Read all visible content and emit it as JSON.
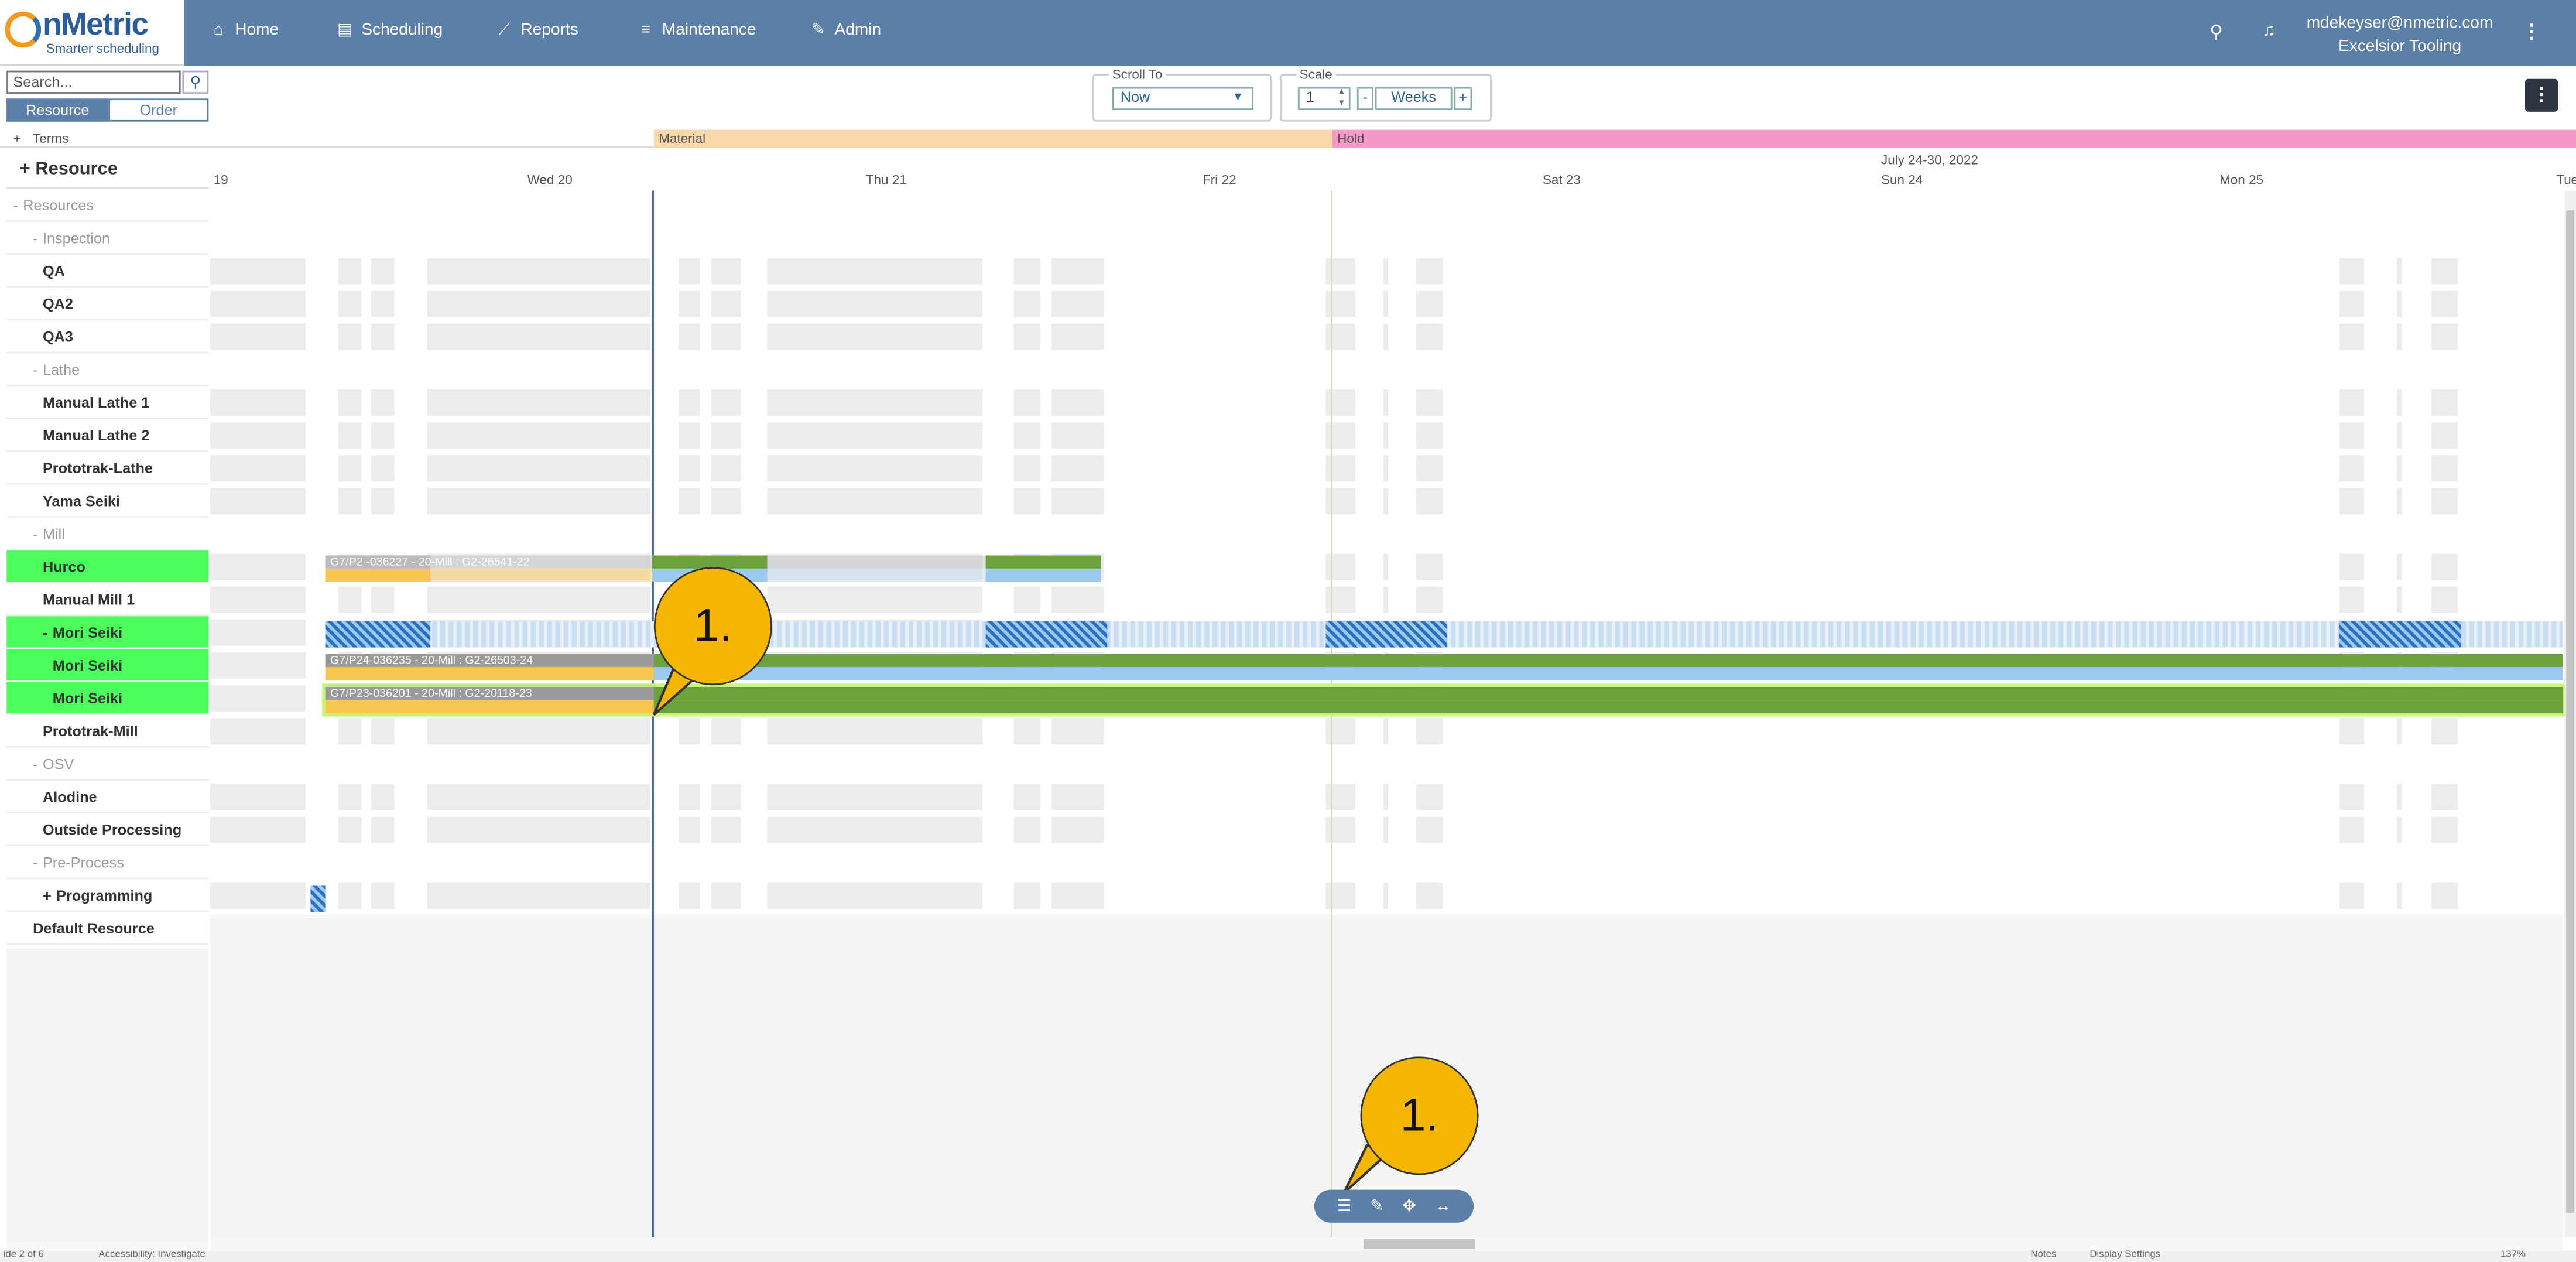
{
  "app": {
    "logo_text": "nMetric",
    "logo_tagline": "Smarter scheduling",
    "nav": [
      {
        "label": "Home",
        "icon": "home-icon"
      },
      {
        "label": "Scheduling",
        "icon": "scheduling-icon"
      },
      {
        "label": "Reports",
        "icon": "chart-icon"
      },
      {
        "label": "Maintenance",
        "icon": "sliders-icon"
      },
      {
        "label": "Admin",
        "icon": "edit-icon"
      }
    ],
    "user_email": "mdekeyser@nmetric.com",
    "company": "Excelsior Tooling"
  },
  "sidebar": {
    "search_placeholder": "Search...",
    "tab_resource": "Resource",
    "tab_order": "Order",
    "terms": "Terms",
    "header": "Resource",
    "rows": [
      {
        "label": "Resources",
        "prefix": "-",
        "level": 0,
        "style": "group"
      },
      {
        "label": "Inspection",
        "prefix": "-",
        "level": 1,
        "style": "group"
      },
      {
        "label": "QA",
        "prefix": "",
        "level": 2,
        "style": "item"
      },
      {
        "label": "QA2",
        "prefix": "",
        "level": 2,
        "style": "item"
      },
      {
        "label": "QA3",
        "prefix": "",
        "level": 2,
        "style": "item"
      },
      {
        "label": "Lathe",
        "prefix": "-",
        "level": 1,
        "style": "group"
      },
      {
        "label": "Manual Lathe 1",
        "prefix": "",
        "level": 2,
        "style": "item"
      },
      {
        "label": "Manual Lathe 2",
        "prefix": "",
        "level": 2,
        "style": "item"
      },
      {
        "label": "Prototrak-Lathe",
        "prefix": "",
        "level": 2,
        "style": "item"
      },
      {
        "label": "Yama Seiki",
        "prefix": "",
        "level": 2,
        "style": "item"
      },
      {
        "label": "Mill",
        "prefix": "-",
        "level": 1,
        "style": "group"
      },
      {
        "label": "Hurco",
        "prefix": "",
        "level": 2,
        "style": "active"
      },
      {
        "label": "Manual Mill 1",
        "prefix": "",
        "level": 2,
        "style": "item"
      },
      {
        "label": "Mori Seiki",
        "prefix": "-",
        "level": 2,
        "style": "active"
      },
      {
        "label": "Mori Seiki",
        "prefix": "",
        "level": 3,
        "style": "active"
      },
      {
        "label": "Mori Seiki",
        "prefix": "",
        "level": 3,
        "style": "active"
      },
      {
        "label": "Prototrak-Mill",
        "prefix": "",
        "level": 2,
        "style": "item"
      },
      {
        "label": "OSV",
        "prefix": "-",
        "level": 1,
        "style": "group"
      },
      {
        "label": "Alodine",
        "prefix": "",
        "level": 2,
        "style": "item"
      },
      {
        "label": "Outside Processing",
        "prefix": "",
        "level": 2,
        "style": "item"
      },
      {
        "label": "Pre-Process",
        "prefix": "-",
        "level": 1,
        "style": "group"
      },
      {
        "label": "Programming",
        "prefix": "+",
        "level": 2,
        "style": "item"
      },
      {
        "label": "Default Resource",
        "prefix": "",
        "level": 1,
        "style": "item"
      }
    ]
  },
  "controls": {
    "scroll_to_label": "Scroll To",
    "scroll_to_value": "Now",
    "scale_label": "Scale",
    "scale_value": "1",
    "scale_unit": "Weeks",
    "minus": "-",
    "plus": "+"
  },
  "timeline": {
    "terms": [
      {
        "label": "Material",
        "color": "#f8d7a8"
      },
      {
        "label": "Hold",
        "color": "#f59ac8"
      }
    ],
    "range": "July 24-30, 2022",
    "days": [
      "19",
      "Wed 20",
      "Thu 21",
      "Fri 22",
      "Sat 23",
      "Sun 24",
      "Mon 25",
      "Tue"
    ],
    "bars": [
      {
        "label": "G7/P24-036235 - 20-Mill : G2-26503-24"
      },
      {
        "label": "G7/P23-036201 - 20-Mill : G2-20118-23"
      },
      {
        "label": "G7/P2  -036227 - 20-Mill : G2-26541-22"
      }
    ]
  },
  "callouts": [
    "1.",
    "1."
  ],
  "toolbar": [
    "list-icon",
    "wrench-icon",
    "move-icon",
    "resize-icon"
  ],
  "status_bar": {
    "page": "ide 2 of 6",
    "accessibility": "Accessibility: Investigate",
    "notes": "Notes",
    "display": "Display Settings",
    "zoom": "137%"
  },
  "colors": {
    "nav": "#5b7fa8",
    "active_row": "#4cfd5e",
    "bar_green": "#6ba33a",
    "bar_yellow": "#f9c74f",
    "bar_blue": "#9cc9f0"
  }
}
